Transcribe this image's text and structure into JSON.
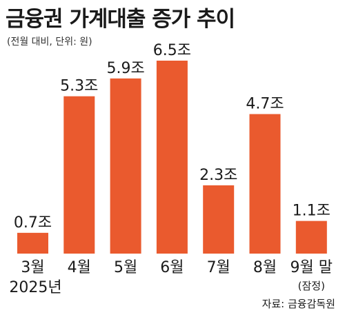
{
  "title": "금융권 가계대출 증가 추이",
  "subtitle": "(전월 대비, 단위: 원)",
  "source": "자료: 금융감독원",
  "colors": {
    "bar": "#ea5a2e",
    "text": "#1a1a1a"
  },
  "chart_data": {
    "type": "bar",
    "categories": [
      "3월",
      "4월",
      "5월",
      "6월",
      "7월",
      "8월",
      "9월 말"
    ],
    "values": [
      0.7,
      5.3,
      5.9,
      6.5,
      2.3,
      4.7,
      1.1
    ],
    "value_labels": [
      "0.7조",
      "5.3조",
      "5.9조",
      "6.5조",
      "2.3조",
      "4.7조",
      "1.1조"
    ],
    "category_notes": [
      "2025년",
      "",
      "",
      "",
      "",
      "",
      "(잠정)"
    ],
    "title": "금융권 가계대출 증가 추이",
    "subtitle": "(전월 대비, 단위: 원)",
    "xlabel": "",
    "ylabel": "",
    "ylim": [
      0,
      6.5
    ],
    "grid": false,
    "legend": "none"
  }
}
